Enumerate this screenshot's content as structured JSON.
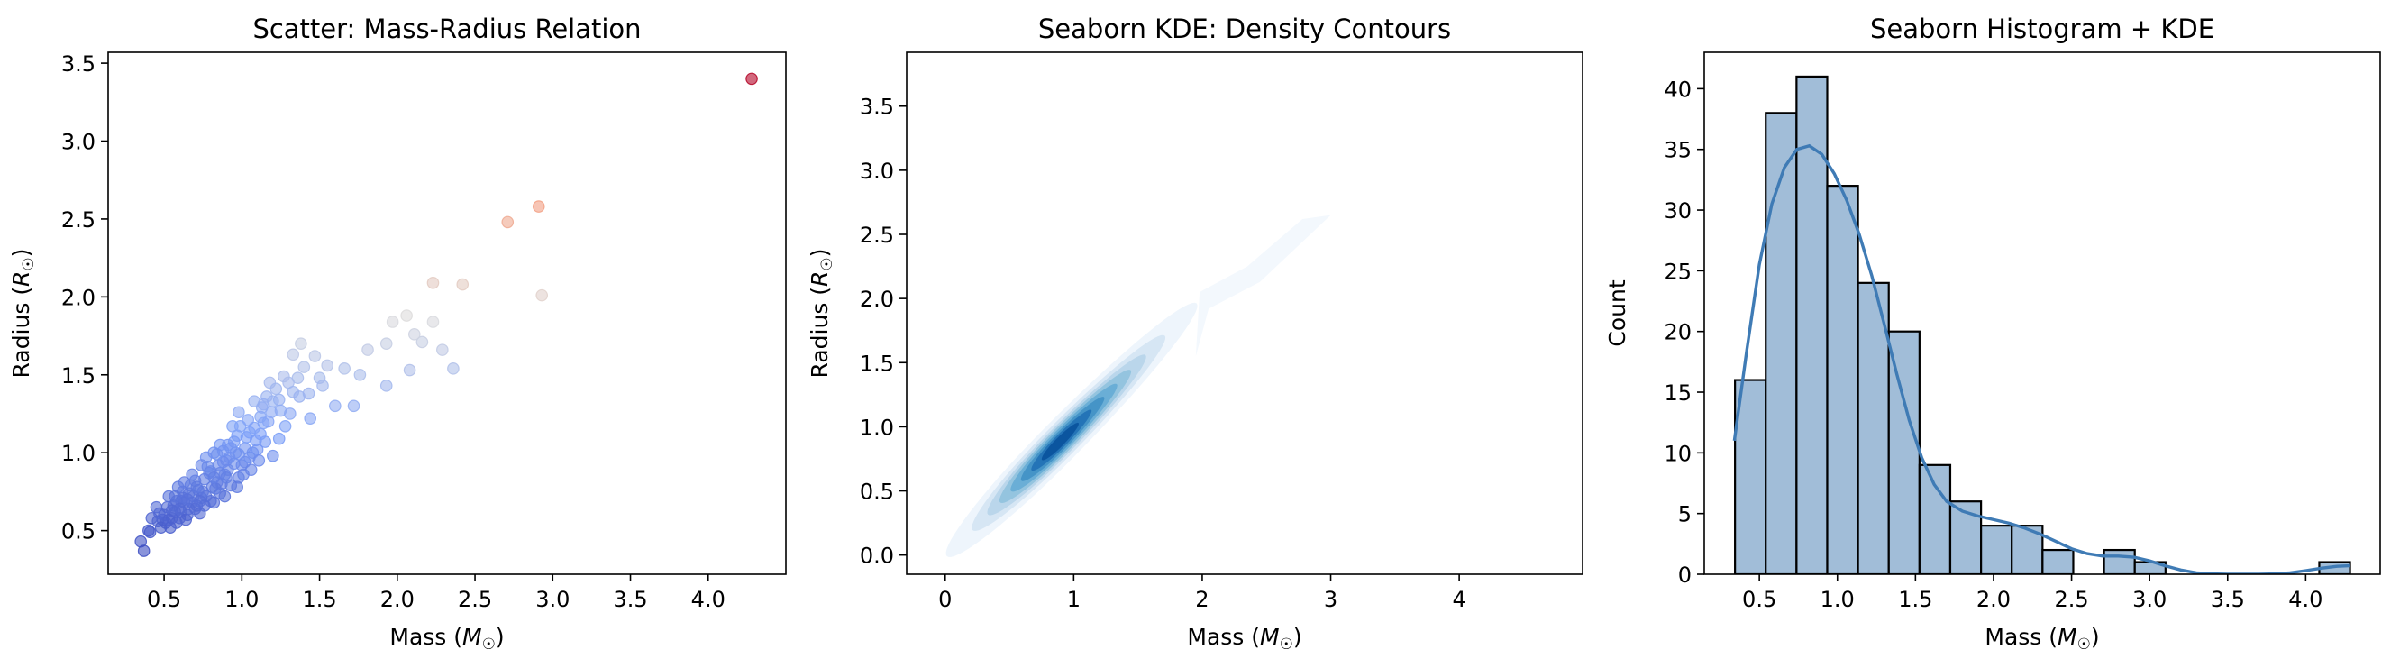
{
  "chart_data": [
    {
      "type": "scatter",
      "title": "Scatter: Mass-Radius Relation",
      "xlabel": "Mass ($M_\\odot$)",
      "ylabel": "Radius ($R_\\odot$)",
      "xlabel_parts": [
        "Mass (",
        "M",
        "☉",
        ")"
      ],
      "ylabel_parts": [
        "Radius (",
        "R",
        "☉",
        ")"
      ],
      "xlim": [
        0.14,
        4.5
      ],
      "ylim": [
        0.22,
        3.57
      ],
      "xticks": [
        0.5,
        1.0,
        1.5,
        2.0,
        2.5,
        3.0,
        3.5,
        4.0
      ],
      "xtick_labels": [
        "0.5",
        "1.0",
        "1.5",
        "2.0",
        "2.5",
        "3.0",
        "3.5",
        "4.0"
      ],
      "yticks": [
        0.5,
        1.0,
        1.5,
        2.0,
        2.5,
        3.0,
        3.5
      ],
      "ytick_labels": [
        "0.5",
        "1.0",
        "1.5",
        "2.0",
        "2.5",
        "3.0",
        "3.5"
      ],
      "colormap": "coolwarm",
      "color_range": [
        0.36,
        3.4
      ],
      "points": [
        [
          4.28,
          3.4
        ],
        [
          2.91,
          2.58
        ],
        [
          2.71,
          2.48
        ],
        [
          2.93,
          2.01
        ],
        [
          2.42,
          2.08
        ],
        [
          2.23,
          2.09
        ],
        [
          2.23,
          1.84
        ],
        [
          2.16,
          1.71
        ],
        [
          2.29,
          1.66
        ],
        [
          2.36,
          1.54
        ],
        [
          2.08,
          1.53
        ],
        [
          1.93,
          1.43
        ],
        [
          2.11,
          1.76
        ],
        [
          2.06,
          1.88
        ],
        [
          1.97,
          1.84
        ],
        [
          1.81,
          1.66
        ],
        [
          1.93,
          1.7
        ],
        [
          1.76,
          1.5
        ],
        [
          1.66,
          1.54
        ],
        [
          1.72,
          1.3
        ],
        [
          1.6,
          1.3
        ],
        [
          1.55,
          1.56
        ],
        [
          1.5,
          1.48
        ],
        [
          1.43,
          1.38
        ],
        [
          1.38,
          1.7
        ],
        [
          1.33,
          1.63
        ],
        [
          1.47,
          1.62
        ],
        [
          1.52,
          1.43
        ],
        [
          1.4,
          1.55
        ],
        [
          1.3,
          1.45
        ],
        [
          1.27,
          1.49
        ],
        [
          1.36,
          1.48
        ],
        [
          1.44,
          1.22
        ],
        [
          1.28,
          1.17
        ],
        [
          1.33,
          1.39
        ],
        [
          1.24,
          1.34
        ],
        [
          1.2,
          1.33
        ],
        [
          1.18,
          1.45
        ],
        [
          1.13,
          1.29
        ],
        [
          1.12,
          1.23
        ],
        [
          1.08,
          1.33
        ],
        [
          1.04,
          1.21
        ],
        [
          1.24,
          1.09
        ],
        [
          1.15,
          1.07
        ],
        [
          1.2,
          0.98
        ],
        [
          0.98,
          1.26
        ],
        [
          1.05,
          1.13
        ],
        [
          0.97,
          1.11
        ],
        [
          0.94,
          1.17
        ],
        [
          0.91,
          1.05
        ],
        [
          0.86,
          1.05
        ],
        [
          1.02,
          0.94
        ],
        [
          0.96,
          1.0
        ],
        [
          1.09,
          1.08
        ],
        [
          1.02,
          1.03
        ],
        [
          0.9,
          0.95
        ],
        [
          0.98,
          0.84
        ],
        [
          0.85,
          0.92
        ],
        [
          0.82,
          1.0
        ],
        [
          0.8,
          0.88
        ],
        [
          0.89,
          0.86
        ],
        [
          0.77,
          0.97
        ],
        [
          0.86,
          0.74
        ],
        [
          0.93,
          0.79
        ],
        [
          0.74,
          0.92
        ],
        [
          0.7,
          0.82
        ],
        [
          0.76,
          0.83
        ],
        [
          0.81,
          0.78
        ],
        [
          0.72,
          0.76
        ],
        [
          0.67,
          0.79
        ],
        [
          0.66,
          0.74
        ],
        [
          0.62,
          0.75
        ],
        [
          0.68,
          0.68
        ],
        [
          0.71,
          0.66
        ],
        [
          0.63,
          0.68
        ],
        [
          0.58,
          0.69
        ],
        [
          0.57,
          0.62
        ],
        [
          0.61,
          0.62
        ],
        [
          0.65,
          0.6
        ],
        [
          0.55,
          0.58
        ],
        [
          0.52,
          0.65
        ],
        [
          0.49,
          0.57
        ],
        [
          0.51,
          0.55
        ],
        [
          0.46,
          0.56
        ],
        [
          0.45,
          0.65
        ],
        [
          0.42,
          0.58
        ],
        [
          0.54,
          0.52
        ],
        [
          0.48,
          0.52
        ],
        [
          0.58,
          0.55
        ],
        [
          0.62,
          0.71
        ],
        [
          0.4,
          0.5
        ],
        [
          0.41,
          0.49
        ],
        [
          0.35,
          0.43
        ],
        [
          0.37,
          0.37
        ],
        [
          0.53,
          0.72
        ],
        [
          0.74,
          0.71
        ],
        [
          0.79,
          0.87
        ],
        [
          0.84,
          0.81
        ],
        [
          0.91,
          0.89
        ],
        [
          1.0,
          0.92
        ],
        [
          1.07,
          1.0
        ],
        [
          1.12,
          1.12
        ],
        [
          0.88,
          1.01
        ],
        [
          0.95,
          1.07
        ],
        [
          1.17,
          1.2
        ],
        [
          0.82,
          0.68
        ],
        [
          0.68,
          0.86
        ],
        [
          0.59,
          0.78
        ],
        [
          0.73,
          0.61
        ],
        [
          0.77,
          0.72
        ],
        [
          0.87,
          0.8
        ],
        [
          0.95,
          0.93
        ],
        [
          1.03,
          1.1
        ],
        [
          1.1,
          1.02
        ],
        [
          0.99,
          1.17
        ],
        [
          1.06,
          0.89
        ],
        [
          1.14,
          1.19
        ],
        [
          0.92,
          0.97
        ],
        [
          0.86,
          0.87
        ],
        [
          0.78,
          0.91
        ],
        [
          0.7,
          0.64
        ],
        [
          0.64,
          0.57
        ],
        [
          0.56,
          0.66
        ],
        [
          0.5,
          0.6
        ],
        [
          0.6,
          0.58
        ],
        [
          0.75,
          0.75
        ],
        [
          0.83,
          0.77
        ],
        [
          0.89,
          0.72
        ],
        [
          1.01,
          0.86
        ],
        [
          1.25,
          1.27
        ],
        [
          1.31,
          1.25
        ],
        [
          1.37,
          1.36
        ],
        [
          1.16,
          1.36
        ],
        [
          1.22,
          1.41
        ],
        [
          0.97,
          0.78
        ],
        [
          0.69,
          0.72
        ],
        [
          0.61,
          0.69
        ],
        [
          0.57,
          0.72
        ],
        [
          0.47,
          0.61
        ],
        [
          0.55,
          0.63
        ],
        [
          0.63,
          0.81
        ],
        [
          0.66,
          0.64
        ],
        [
          0.8,
          0.69
        ],
        [
          0.88,
          0.94
        ],
        [
          1.05,
          0.97
        ],
        [
          1.11,
          0.95
        ],
        [
          1.19,
          1.26
        ],
        [
          0.93,
          1.03
        ],
        [
          0.84,
          0.99
        ],
        [
          0.76,
          0.66
        ],
        [
          0.71,
          0.78
        ],
        [
          0.65,
          0.7
        ],
        [
          0.53,
          0.57
        ],
        [
          0.6,
          0.64
        ],
        [
          0.73,
          0.69
        ],
        [
          0.82,
          0.84
        ],
        [
          0.98,
          0.99
        ],
        [
          1.08,
          1.16
        ],
        [
          1.14,
          1.31
        ],
        [
          0.9,
          0.84
        ]
      ]
    },
    {
      "type": "kde2d",
      "title": "Seaborn KDE: Density Contours",
      "xlabel": "Mass ($M_\\odot$)",
      "ylabel": "Radius ($R_\\odot$)",
      "xlabel_parts": [
        "Mass (",
        "M",
        "☉",
        ")"
      ],
      "ylabel_parts": [
        "Radius (",
        "R",
        "☉",
        ")"
      ],
      "xlim": [
        -0.3,
        4.96
      ],
      "ylim": [
        -0.15,
        3.92
      ],
      "xticks": [
        0,
        1,
        2,
        3,
        4
      ],
      "xtick_labels": [
        "0",
        "1",
        "2",
        "3",
        "4"
      ],
      "yticks": [
        0.0,
        0.5,
        1.0,
        1.5,
        2.0,
        2.5,
        3.0,
        3.5
      ],
      "ytick_labels": [
        "0.0",
        "0.5",
        "1.0",
        "1.5",
        "2.0",
        "2.5",
        "3.0",
        "3.5"
      ],
      "colormap": "Blues",
      "center": [
        0.88,
        0.87
      ],
      "direction": [
        0.7,
        0.71
      ],
      "levels": [
        {
          "level": 1,
          "color": "#eef5fc",
          "a": 1.3,
          "b": 0.16
        },
        {
          "level": 2,
          "color": "#d6e6f4",
          "a": 1.0,
          "b": 0.13
        },
        {
          "level": 3,
          "color": "#bad6eb",
          "a": 0.82,
          "b": 0.11
        },
        {
          "level": 4,
          "color": "#94c4df",
          "a": 0.68,
          "b": 0.095
        },
        {
          "level": 5,
          "color": "#6aaed6",
          "a": 0.55,
          "b": 0.08
        },
        {
          "level": 6,
          "color": "#4594c7",
          "a": 0.43,
          "b": 0.065
        },
        {
          "level": 7,
          "color": "#2474b7",
          "a": 0.31,
          "b": 0.05
        },
        {
          "level": 8,
          "color": "#0b559f",
          "a": 0.19,
          "b": 0.035
        }
      ],
      "tail": [
        [
          1.95,
          1.55
        ],
        [
          2.05,
          1.92
        ],
        [
          2.45,
          2.13
        ],
        [
          3.0,
          2.65
        ],
        [
          2.78,
          2.62
        ],
        [
          2.35,
          2.25
        ],
        [
          1.98,
          2.05
        ]
      ]
    },
    {
      "type": "bar",
      "title": "Seaborn Histogram + KDE",
      "xlabel": "Mass ($M_\\odot$)",
      "ylabel": "Count",
      "xlabel_parts": [
        "Mass (",
        "M",
        "☉",
        ")"
      ],
      "xlim": [
        0.147,
        4.477
      ],
      "ylim": [
        0,
        43
      ],
      "xticks": [
        0.5,
        1.0,
        1.5,
        2.0,
        2.5,
        3.0,
        3.5,
        4.0
      ],
      "xtick_labels": [
        "0.5",
        "1.0",
        "1.5",
        "2.0",
        "2.5",
        "3.0",
        "3.5",
        "4.0"
      ],
      "yticks": [
        0,
        5,
        10,
        15,
        20,
        25,
        30,
        35,
        40
      ],
      "ytick_labels": [
        "0",
        "5",
        "10",
        "15",
        "20",
        "25",
        "30",
        "35",
        "40"
      ],
      "bin_start": 0.344,
      "bin_width": 0.197,
      "counts": [
        16,
        38,
        41,
        32,
        24,
        20,
        9,
        6,
        4,
        4,
        2,
        0,
        2,
        1,
        0,
        0,
        0,
        0,
        0,
        1
      ],
      "bar_color": "#a1bdd8",
      "kde_color": "#3f7bb5",
      "kde": [
        [
          0.34,
          11.0
        ],
        [
          0.42,
          18.5
        ],
        [
          0.5,
          25.5
        ],
        [
          0.58,
          30.5
        ],
        [
          0.66,
          33.5
        ],
        [
          0.74,
          35.0
        ],
        [
          0.82,
          35.3
        ],
        [
          0.9,
          34.6
        ],
        [
          0.98,
          33.0
        ],
        [
          1.06,
          30.8
        ],
        [
          1.14,
          28.0
        ],
        [
          1.22,
          24.6
        ],
        [
          1.3,
          20.6
        ],
        [
          1.38,
          16.5
        ],
        [
          1.46,
          12.7
        ],
        [
          1.54,
          9.6
        ],
        [
          1.62,
          7.4
        ],
        [
          1.7,
          6.0
        ],
        [
          1.8,
          5.2
        ],
        [
          1.9,
          4.8
        ],
        [
          2.0,
          4.5
        ],
        [
          2.1,
          4.2
        ],
        [
          2.2,
          3.8
        ],
        [
          2.3,
          3.3
        ],
        [
          2.4,
          2.7
        ],
        [
          2.5,
          2.1
        ],
        [
          2.6,
          1.7
        ],
        [
          2.7,
          1.5
        ],
        [
          2.8,
          1.5
        ],
        [
          2.9,
          1.4
        ],
        [
          3.0,
          1.1
        ],
        [
          3.1,
          0.7
        ],
        [
          3.2,
          0.35
        ],
        [
          3.3,
          0.12
        ],
        [
          3.4,
          0.03
        ],
        [
          3.5,
          0.01
        ],
        [
          3.6,
          0.0
        ],
        [
          3.7,
          0.0
        ],
        [
          3.8,
          0.03
        ],
        [
          3.9,
          0.12
        ],
        [
          4.0,
          0.3
        ],
        [
          4.1,
          0.5
        ],
        [
          4.2,
          0.65
        ],
        [
          4.28,
          0.7
        ]
      ]
    }
  ]
}
